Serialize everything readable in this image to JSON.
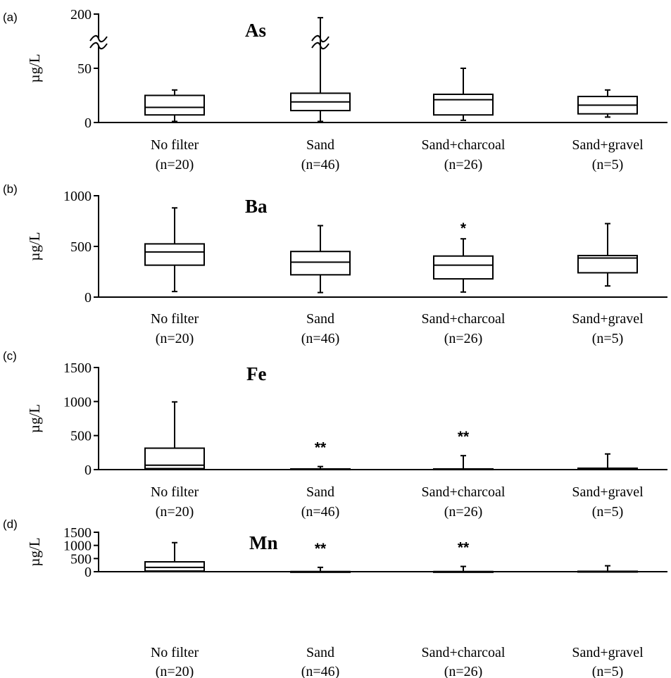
{
  "chart_data": [
    {
      "panel_label": "(a)",
      "type": "box",
      "title": "As",
      "ylabel": "µg/L",
      "y_ticks": [
        "0",
        "50",
        "200"
      ],
      "axis_break": true,
      "ylim": [
        0,
        200
      ],
      "categories": [
        "No filter",
        "Sand",
        "Sand+charcoal",
        "Sand+gravel"
      ],
      "category_counts": [
        "(n=20)",
        "(n=46)",
        "(n=26)",
        "(n=5)"
      ],
      "boxes": [
        {
          "min": 1,
          "q1": 7,
          "median": 14,
          "q3": 25,
          "max": 30
        },
        {
          "min": 1,
          "q1": 11,
          "median": 19,
          "q3": 27,
          "max": 190
        },
        {
          "min": 2,
          "q1": 7,
          "median": 21,
          "q3": 26,
          "max": 50
        },
        {
          "min": 5,
          "q1": 8,
          "median": 16,
          "q3": 24,
          "max": 30
        }
      ],
      "significance": [
        "",
        "",
        "",
        ""
      ]
    },
    {
      "panel_label": "(b)",
      "type": "box",
      "title": "Ba",
      "ylabel": "µg/L",
      "y_ticks": [
        "0",
        "500",
        "1000"
      ],
      "ylim": [
        0,
        1000
      ],
      "categories": [
        "No filter",
        "Sand",
        "Sand+charcoal",
        "Sand+gravel"
      ],
      "category_counts": [
        "(n=20)",
        "(n=46)",
        "(n=26)",
        "(n=5)"
      ],
      "boxes": [
        {
          "min": 55,
          "q1": 315,
          "median": 445,
          "q3": 525,
          "max": 880
        },
        {
          "min": 45,
          "q1": 220,
          "median": 345,
          "q3": 450,
          "max": 705
        },
        {
          "min": 50,
          "q1": 180,
          "median": 315,
          "q3": 405,
          "max": 575
        },
        {
          "min": 110,
          "q1": 240,
          "median": 385,
          "q3": 410,
          "max": 725
        }
      ],
      "significance": [
        "",
        "",
        "*",
        ""
      ]
    },
    {
      "panel_label": "(c)",
      "type": "box",
      "title": "Fe",
      "ylabel": "µg/L",
      "y_ticks": [
        "0",
        "500",
        "1000",
        "1500"
      ],
      "ylim": [
        0,
        1500
      ],
      "categories": [
        "No filter",
        "Sand",
        "Sand+charcoal",
        "Sand+gravel"
      ],
      "category_counts": [
        "(n=20)",
        "(n=46)",
        "(n=26)",
        "(n=5)"
      ],
      "boxes": [
        {
          "min": 0,
          "q1": 15,
          "median": 65,
          "q3": 315,
          "max": 995
        },
        {
          "min": 0,
          "q1": 0,
          "median": 5,
          "q3": 10,
          "max": 45
        },
        {
          "min": 0,
          "q1": 0,
          "median": 5,
          "q3": 10,
          "max": 205
        },
        {
          "min": 0,
          "q1": 0,
          "median": 10,
          "q3": 20,
          "max": 230
        }
      ],
      "significance": [
        "",
        "**",
        "**",
        ""
      ]
    },
    {
      "panel_label": "(d)",
      "type": "box",
      "title": "Mn",
      "ylabel": "µg/L",
      "y_ticks": [
        "0",
        "500",
        "1000",
        "1500"
      ],
      "ylim": [
        0,
        1500
      ],
      "categories": [
        "No filter",
        "Sand",
        "Sand+charcoal",
        "Sand+gravel"
      ],
      "category_counts": [
        "(n=20)",
        "(n=46)",
        "(n=26)",
        "(n=5)"
      ],
      "boxes": [
        {
          "min": 0,
          "q1": 25,
          "median": 165,
          "q3": 375,
          "max": 1105
        },
        {
          "min": 0,
          "q1": 0,
          "median": 2,
          "q3": 5,
          "max": 165
        },
        {
          "min": 0,
          "q1": 0,
          "median": 2,
          "q3": 5,
          "max": 200
        },
        {
          "min": 0,
          "q1": 0,
          "median": 5,
          "q3": 15,
          "max": 225
        }
      ],
      "significance": [
        "",
        "**",
        "**",
        ""
      ]
    }
  ]
}
